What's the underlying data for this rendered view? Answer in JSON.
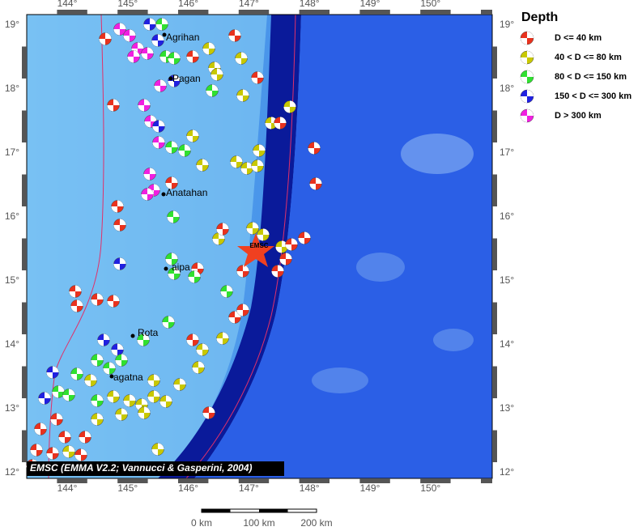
{
  "map": {
    "x_ticks": [
      "144°",
      "145°",
      "146°",
      "147°",
      "148°",
      "149°",
      "150°"
    ],
    "y_ticks": [
      "12°",
      "13°",
      "14°",
      "15°",
      "16°",
      "17°",
      "18°",
      "19°"
    ],
    "legend": {
      "title": "Depth",
      "items": [
        {
          "label": "D <= 40 km",
          "color": "#e8321e"
        },
        {
          "label": "40 < D <= 80 km",
          "color": "#c8c800"
        },
        {
          "label": "80 < D <= 150 km",
          "color": "#30e030"
        },
        {
          "label": "150 < D <= 300 km",
          "color": "#2020e0"
        },
        {
          "label": "D > 300 km",
          "color": "#f020e0"
        }
      ]
    },
    "places": [
      "Agrihan",
      "Pagan",
      "Anatahan",
      "aipa",
      "Rota",
      "agatna"
    ],
    "marker": "EMSC",
    "credit": "EMSC (EMMA V2.2; Vannucci & Gasperini, 2004)",
    "scale": [
      "0 km",
      "100 km",
      "200 km"
    ]
  }
}
